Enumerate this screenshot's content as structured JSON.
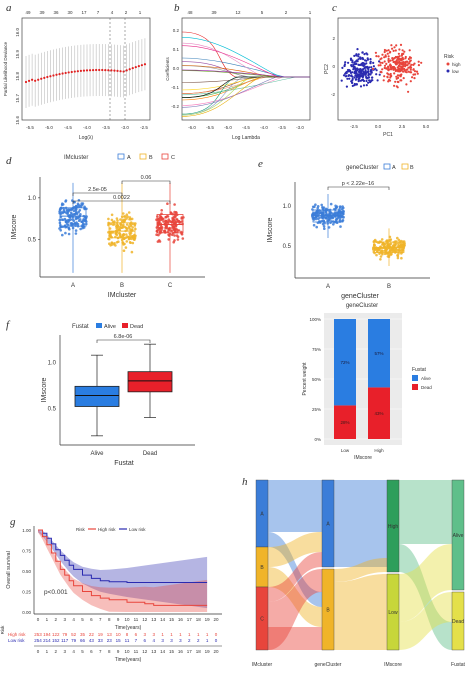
{
  "panel_labels": {
    "a": "a",
    "b": "b",
    "c": "c",
    "d": "d",
    "e": "e",
    "f": "f",
    "g": "g",
    "h": "h"
  },
  "colors": {
    "A": "#3b7dd8",
    "B": "#f0b429",
    "C": "#e8453c",
    "high": "#e8453c",
    "low": "#2a2ab0",
    "alive": "#2a7de1",
    "dead": "#e8202a",
    "sankey_high": "#2e9e5b",
    "sankey_low": "#c7d63a",
    "sankey_alive": "#5fbf8a",
    "sankey_dead": "#e4e04a",
    "ci_dot": "#e02020"
  },
  "chart_data": [
    {
      "id": "a",
      "type": "scatter",
      "top_ticks": [
        "49",
        "39",
        "36",
        "30",
        "17",
        "7",
        "4",
        "2",
        "1"
      ],
      "xlabel": "Log(λ)",
      "ylabel": "Partial Likelihood Deviance",
      "x_ticks": [
        "-5.5",
        "-5.0",
        "-4.5",
        "-4.0",
        "-3.5",
        "-3.0",
        "-2.5"
      ],
      "y_ticks": [
        "16.0",
        "15.9",
        "15.8",
        "15.7",
        "15.6"
      ],
      "xlim": [
        -5.8,
        -2.2
      ]
    },
    {
      "id": "b",
      "type": "line",
      "top_ticks": [
        "48",
        "39",
        "12",
        "5",
        "2",
        "1"
      ],
      "xlabel": "Log Lambda",
      "ylabel": "Coefficients",
      "x_ticks": [
        "-6.0",
        "-5.5",
        "-5.0",
        "-4.5",
        "-4.0",
        "-3.5",
        "-3.0"
      ],
      "y_ticks": [
        "0.2",
        "0.1",
        "0.0",
        "-0.1",
        "-0.2"
      ]
    },
    {
      "id": "c",
      "type": "scatter",
      "xlabel": "PC1",
      "ylabel": "PC2",
      "x_ticks": [
        "-2.5",
        "0.0",
        "2.5",
        "5.0"
      ],
      "y_ticks": [
        "2",
        "0",
        "-2"
      ],
      "legend_title": "Risk",
      "series": [
        {
          "name": "high"
        },
        {
          "name": "low"
        }
      ]
    },
    {
      "id": "d",
      "type": "scatter",
      "legend_title": "IMcluster",
      "categories": [
        "A",
        "B",
        "C"
      ],
      "xlabel": "IMcluster",
      "ylabel": "IMscore",
      "y_ticks": [
        "1.0",
        "0.5"
      ],
      "median": [
        0.78,
        0.6,
        0.68
      ],
      "q1": [
        0.66,
        0.52,
        0.58
      ],
      "q3": [
        0.88,
        0.7,
        0.8
      ],
      "pvalues": [
        "0.06",
        "2.5e-05",
        "0.0022"
      ]
    },
    {
      "id": "e",
      "type": "scatter",
      "legend_title": "geneCluster",
      "categories": [
        "A",
        "B"
      ],
      "xlabel": "geneCluster",
      "ylabel": "IMscore",
      "y_ticks": [
        "1.0",
        "0.5"
      ],
      "median": [
        0.88,
        0.48
      ],
      "pvalue": "p < 2.22e−16"
    },
    {
      "id": "f",
      "type": "scatter",
      "legend_title": "Fustat",
      "categories": [
        "Alive",
        "Dead"
      ],
      "xlabel": "Fustat",
      "ylabel": "IMscore",
      "y_ticks": [
        "1.0",
        "0.5"
      ],
      "median": [
        0.64,
        0.8
      ],
      "q1": [
        0.52,
        0.68
      ],
      "q3": [
        0.74,
        0.9
      ],
      "whisker_low": [
        0.2,
        0.4
      ],
      "whisker_high": [
        1.08,
        1.2
      ],
      "pvalue": "6.8e-06"
    },
    {
      "id": "stack",
      "type": "bar",
      "title": "geneCluster",
      "categories": [
        "Low",
        "High"
      ],
      "xlabel": "IMscore",
      "ylabel": "Percent weight",
      "y_ticks": [
        "100%",
        "75%",
        "50%",
        "25%",
        "0%"
      ],
      "legend_title": "Fustat",
      "series": [
        {
          "name": "Alive",
          "values": [
            72,
            57
          ]
        },
        {
          "name": "Dead",
          "values": [
            28,
            43
          ]
        }
      ],
      "labels_alive": [
        "72%",
        "57%"
      ],
      "labels_dead": [
        "28%",
        "43%"
      ]
    },
    {
      "id": "g",
      "type": "line",
      "legend_title": "Risk",
      "series": [
        {
          "name": "High risk"
        },
        {
          "name": "Low risk"
        }
      ],
      "xlabel": "Time(years)",
      "ylabel": "Overall survival",
      "y_ticks": [
        "1.00",
        "0.75",
        "0.50",
        "0.25",
        "0.00"
      ],
      "x_ticks": [
        "0",
        "1",
        "2",
        "3",
        "4",
        "5",
        "6",
        "7",
        "8",
        "9",
        "10",
        "11",
        "12",
        "13",
        "14",
        "15",
        "16",
        "17",
        "18",
        "19",
        "20"
      ],
      "pvalue": "p<0.001",
      "risk_table": {
        "title": "Risk",
        "high_label": "High risk",
        "low_label": "Low risk",
        "high": [
          "253",
          "194",
          "122",
          "79",
          "52",
          "35",
          "22",
          "19",
          "13",
          "10",
          "8",
          "6",
          "3",
          "3",
          "1",
          "1",
          "1",
          "1",
          "1",
          "1",
          "0"
        ],
        "low": [
          "254",
          "214",
          "152",
          "117",
          "79",
          "66",
          "43",
          "33",
          "23",
          "15",
          "11",
          "7",
          "6",
          "4",
          "3",
          "3",
          "3",
          "2",
          "2",
          "1",
          "0"
        ]
      }
    },
    {
      "id": "h",
      "type": "table",
      "axes": [
        "IMcluster",
        "geneCluster",
        "IMscore",
        "Fustat"
      ],
      "nodes": {
        "IMcluster": [
          "A",
          "B",
          "C"
        ],
        "geneCluster": [
          "A",
          "B"
        ],
        "IMscore": [
          "High",
          "Low"
        ],
        "Fustat": [
          "Alive",
          "Dead"
        ]
      }
    }
  ]
}
